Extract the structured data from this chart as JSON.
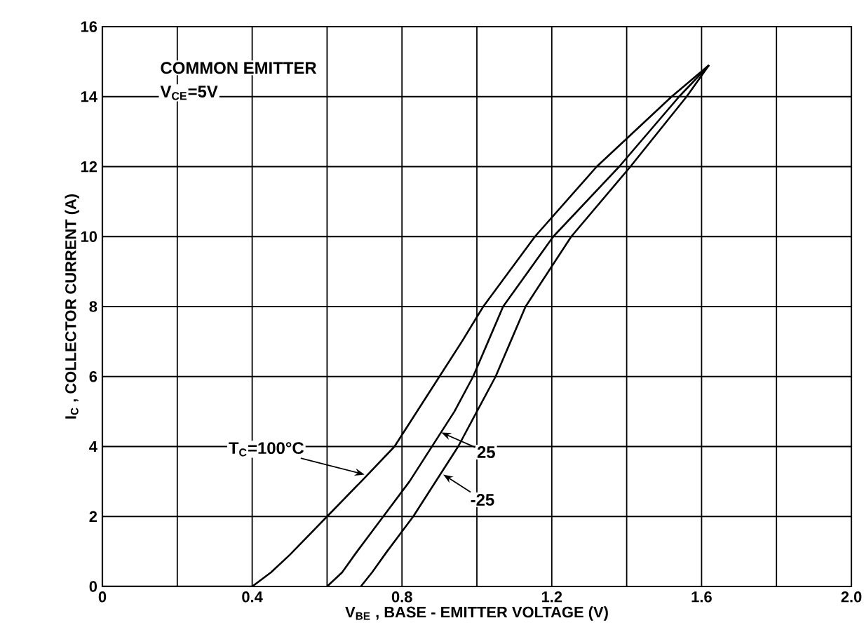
{
  "chart_data": {
    "type": "line",
    "xlabel": "V$_{BE}$ , BASE - EMITTER VOLTAGE  (V)",
    "ylabel": "I$_{C}$ , COLLECTOR CURRENT  (A)",
    "annotations": [
      "COMMON EMITTER",
      "V$_{CE}$=5V",
      {
        "text": "T$_{C}$=100°C",
        "x": 0.7,
        "y": 3.2
      },
      {
        "text": "25",
        "x": 0.905,
        "y": 4.4
      },
      {
        "text": "-25",
        "x": 0.91,
        "y": 3.2
      }
    ],
    "series": [
      {
        "color": "#000000",
        "x": [
          0,
          0.4,
          0.45,
          0.5,
          0.6,
          0.7,
          0.78,
          0.84,
          0.9,
          0.96,
          1.017,
          1.155,
          1.32,
          1.52,
          1.62
        ],
        "values": [
          0,
          0,
          0.4,
          0.9,
          2,
          3.1,
          4,
          5,
          6,
          7,
          8,
          10,
          12,
          14,
          14.9
        ]
      },
      {
        "color": "#000000",
        "x": [
          0.6,
          0.64,
          0.68,
          0.75,
          0.82,
          0.88,
          0.94,
          0.99,
          1.03,
          1.07,
          1.204,
          1.38,
          1.54,
          1.62
        ],
        "values": [
          0,
          0.4,
          1,
          2,
          3,
          4,
          5,
          6,
          7,
          8,
          10,
          12,
          14,
          14.9
        ]
      },
      {
        "color": "#000000",
        "x": [
          0.69,
          0.72,
          0.76,
          0.83,
          0.89,
          0.95,
          1.0,
          1.05,
          1.09,
          1.13,
          1.252,
          1.41,
          1.56,
          1.62
        ],
        "values": [
          0,
          0.4,
          1,
          2,
          3,
          4,
          5,
          6,
          7,
          8,
          10,
          12,
          14,
          14.9
        ]
      }
    ],
    "xlim": [
      0,
      2
    ],
    "ylim": [
      0,
      16
    ],
    "xticks": [
      0,
      {
        "value": 0.2,
        "label": null
      },
      0.4,
      {
        "value": 0.6,
        "label": null
      },
      0.8,
      {
        "value": 1.0,
        "label": null
      },
      1.2,
      {
        "value": 1.4,
        "label": null
      },
      1.6,
      {
        "value": 1.8,
        "label": null
      },
      {
        "value": 2,
        "label": "2.0"
      }
    ],
    "yticks": [
      0,
      2,
      4,
      6,
      8,
      10,
      12,
      14,
      16
    ],
    "grid": true
  }
}
